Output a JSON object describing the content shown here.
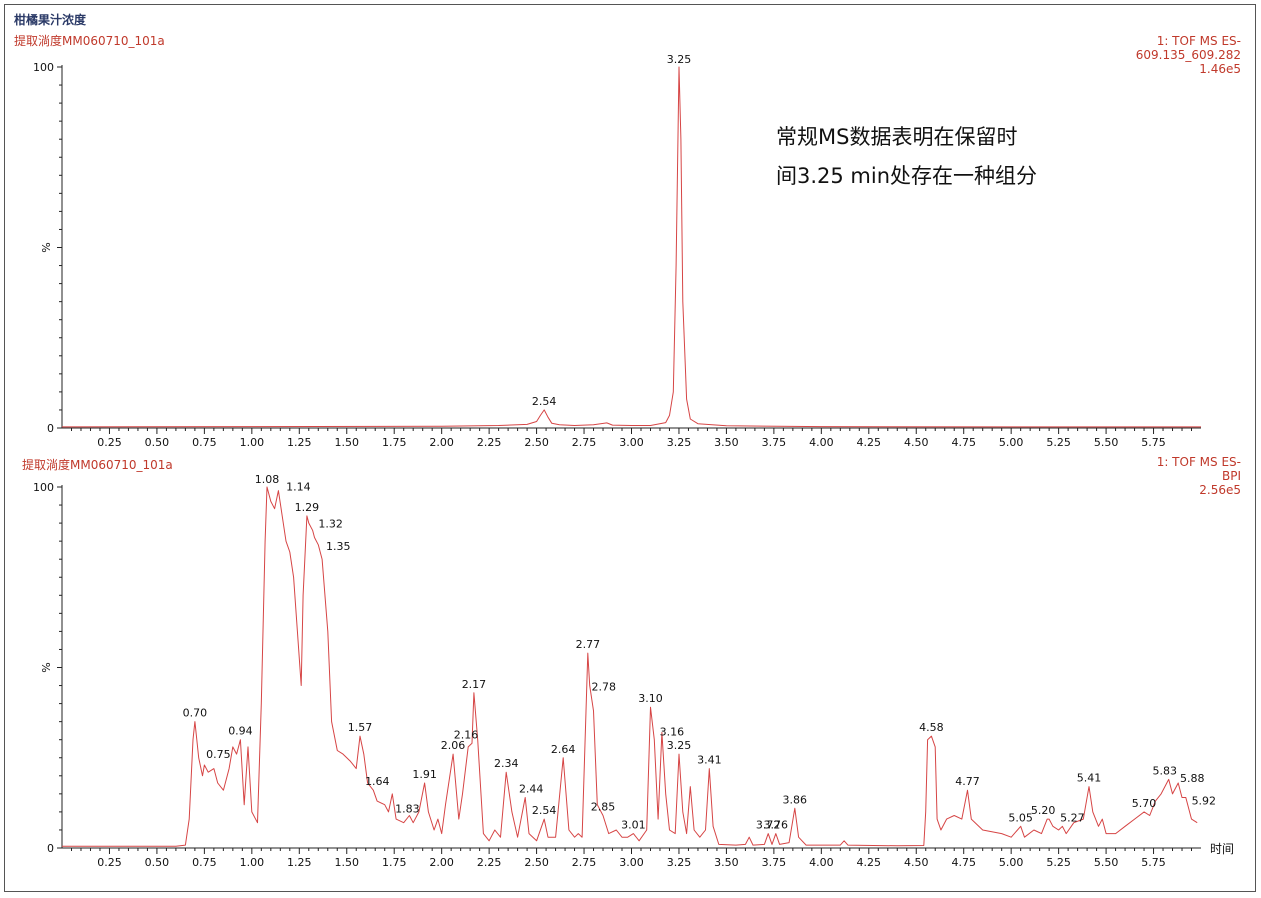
{
  "title": "柑橘果汁浓度",
  "note": [
    "常规MS数据表明在保留时",
    "间3.25 min处存在一种组分"
  ],
  "chart_data": [
    {
      "type": "line",
      "subtitle": "提取淌度MM060710_101a",
      "info": [
        "1: TOF MS ES-",
        "609.135_609.282",
        "1.46e5"
      ],
      "ylabel": "%",
      "xlabel": "",
      "xlim": [
        0,
        6
      ],
      "ylim": [
        0,
        100
      ],
      "y_ticks": [
        "0",
        "100"
      ],
      "x_ticks": [
        "0.25",
        "0.50",
        "0.75",
        "1.00",
        "1.25",
        "1.50",
        "1.75",
        "2.00",
        "2.25",
        "2.50",
        "2.75",
        "3.00",
        "3.25",
        "3.50",
        "3.75",
        "4.00",
        "4.25",
        "4.50",
        "4.75",
        "5.00",
        "5.25",
        "5.50",
        "5.75"
      ],
      "peaks": [
        {
          "x": 2.54,
          "y": 5,
          "label": "2.54"
        },
        {
          "x": 3.25,
          "y": 100,
          "label": "3.25"
        }
      ],
      "points": [
        [
          0,
          0.3
        ],
        [
          1.0,
          0.4
        ],
        [
          2.0,
          0.5
        ],
        [
          2.3,
          0.7
        ],
        [
          2.45,
          1.0
        ],
        [
          2.5,
          1.8
        ],
        [
          2.52,
          3.5
        ],
        [
          2.54,
          5.0
        ],
        [
          2.56,
          3.0
        ],
        [
          2.58,
          1.3
        ],
        [
          2.62,
          0.9
        ],
        [
          2.7,
          0.7
        ],
        [
          2.8,
          0.9
        ],
        [
          2.87,
          1.4
        ],
        [
          2.9,
          0.8
        ],
        [
          3.0,
          0.7
        ],
        [
          3.1,
          0.7
        ],
        [
          3.18,
          1.5
        ],
        [
          3.2,
          3.5
        ],
        [
          3.22,
          10
        ],
        [
          3.235,
          45
        ],
        [
          3.25,
          100
        ],
        [
          3.26,
          80
        ],
        [
          3.27,
          35
        ],
        [
          3.29,
          8
        ],
        [
          3.31,
          2.5
        ],
        [
          3.35,
          1.2
        ],
        [
          3.5,
          0.6
        ],
        [
          4.0,
          0.4
        ],
        [
          5.0,
          0.3
        ],
        [
          6.0,
          0.3
        ]
      ]
    },
    {
      "type": "line",
      "subtitle": "提取淌度MM060710_101a",
      "info": [
        "1: TOF MS ES-",
        "BPI",
        "2.56e5"
      ],
      "ylabel": "%",
      "xlabel": "时间",
      "xlim": [
        0,
        6
      ],
      "ylim": [
        0,
        100
      ],
      "y_ticks": [
        "0",
        "100"
      ],
      "x_ticks": [
        "0.25",
        "0.50",
        "0.75",
        "1.00",
        "1.25",
        "1.50",
        "1.75",
        "2.00",
        "2.25",
        "2.50",
        "2.75",
        "3.00",
        "3.25",
        "3.50",
        "3.75",
        "4.00",
        "4.25",
        "4.50",
        "4.75",
        "5.00",
        "5.25",
        "5.50",
        "5.75"
      ],
      "peaks": [
        {
          "x": 0.7,
          "y": 35,
          "label": "0.70"
        },
        {
          "x": 0.75,
          "y": 23,
          "label": "0.75"
        },
        {
          "x": 0.94,
          "y": 30,
          "label": "0.94"
        },
        {
          "x": 1.08,
          "y": 100,
          "label": "1.08"
        },
        {
          "x": 1.14,
          "y": 99,
          "label": "1.14"
        },
        {
          "x": 1.29,
          "y": 92,
          "label": "1.29"
        },
        {
          "x": 1.32,
          "y": 88,
          "label": "1.32"
        },
        {
          "x": 1.35,
          "y": 84,
          "label": "1.35"
        },
        {
          "x": 1.57,
          "y": 31,
          "label": "1.57"
        },
        {
          "x": 1.64,
          "y": 16,
          "label": "1.64"
        },
        {
          "x": 1.83,
          "y": 9,
          "label": "1.83"
        },
        {
          "x": 1.91,
          "y": 18,
          "label": "1.91"
        },
        {
          "x": 2.06,
          "y": 26,
          "label": "2.06"
        },
        {
          "x": 2.16,
          "y": 29,
          "label": "2.16"
        },
        {
          "x": 2.17,
          "y": 43,
          "label": "2.17"
        },
        {
          "x": 2.34,
          "y": 21,
          "label": "2.34"
        },
        {
          "x": 2.44,
          "y": 14,
          "label": "2.44"
        },
        {
          "x": 2.54,
          "y": 8,
          "label": "2.54"
        },
        {
          "x": 2.64,
          "y": 25,
          "label": "2.64"
        },
        {
          "x": 2.77,
          "y": 54,
          "label": "2.77"
        },
        {
          "x": 2.78,
          "y": 45,
          "label": "2.78"
        },
        {
          "x": 2.85,
          "y": 9,
          "label": "2.85"
        },
        {
          "x": 3.01,
          "y": 4,
          "label": "3.01"
        },
        {
          "x": 3.1,
          "y": 39,
          "label": "3.10"
        },
        {
          "x": 3.16,
          "y": 32,
          "label": "3.16"
        },
        {
          "x": 3.25,
          "y": 26,
          "label": "3.25"
        },
        {
          "x": 3.41,
          "y": 22,
          "label": "3.41"
        },
        {
          "x": 3.72,
          "y": 4,
          "label": "3.72"
        },
        {
          "x": 3.76,
          "y": 4,
          "label": "3.76"
        },
        {
          "x": 3.86,
          "y": 11,
          "label": "3.86"
        },
        {
          "x": 4.58,
          "y": 31,
          "label": "4.58"
        },
        {
          "x": 4.77,
          "y": 16,
          "label": "4.77"
        },
        {
          "x": 5.05,
          "y": 6,
          "label": "5.05"
        },
        {
          "x": 5.2,
          "y": 8,
          "label": "5.20"
        },
        {
          "x": 5.27,
          "y": 6,
          "label": "5.27"
        },
        {
          "x": 5.41,
          "y": 17,
          "label": "5.41"
        },
        {
          "x": 5.7,
          "y": 10,
          "label": "5.70"
        },
        {
          "x": 5.83,
          "y": 19,
          "label": "5.83"
        },
        {
          "x": 5.88,
          "y": 18,
          "label": "5.88"
        },
        {
          "x": 5.92,
          "y": 14,
          "label": "5.92"
        }
      ],
      "points": [
        [
          0,
          0.5
        ],
        [
          0.6,
          0.5
        ],
        [
          0.65,
          0.8
        ],
        [
          0.67,
          8
        ],
        [
          0.69,
          30
        ],
        [
          0.7,
          35
        ],
        [
          0.72,
          25
        ],
        [
          0.74,
          20
        ],
        [
          0.75,
          23
        ],
        [
          0.77,
          21
        ],
        [
          0.8,
          22
        ],
        [
          0.82,
          18
        ],
        [
          0.85,
          16
        ],
        [
          0.88,
          22
        ],
        [
          0.9,
          28
        ],
        [
          0.92,
          26
        ],
        [
          0.94,
          30
        ],
        [
          0.96,
          12
        ],
        [
          0.98,
          28
        ],
        [
          1.0,
          10
        ],
        [
          1.03,
          7
        ],
        [
          1.05,
          40
        ],
        [
          1.07,
          85
        ],
        [
          1.08,
          100
        ],
        [
          1.1,
          96
        ],
        [
          1.12,
          94
        ],
        [
          1.14,
          99
        ],
        [
          1.16,
          92
        ],
        [
          1.18,
          85
        ],
        [
          1.2,
          82
        ],
        [
          1.22,
          75
        ],
        [
          1.24,
          60
        ],
        [
          1.26,
          45
        ],
        [
          1.27,
          70
        ],
        [
          1.29,
          92
        ],
        [
          1.3,
          90
        ],
        [
          1.32,
          88
        ],
        [
          1.33,
          86
        ],
        [
          1.35,
          84
        ],
        [
          1.37,
          80
        ],
        [
          1.4,
          60
        ],
        [
          1.42,
          35
        ],
        [
          1.45,
          27
        ],
        [
          1.48,
          26
        ],
        [
          1.52,
          24
        ],
        [
          1.55,
          22
        ],
        [
          1.57,
          31
        ],
        [
          1.59,
          26
        ],
        [
          1.61,
          18
        ],
        [
          1.64,
          16
        ],
        [
          1.66,
          13
        ],
        [
          1.7,
          12
        ],
        [
          1.72,
          10
        ],
        [
          1.74,
          15
        ],
        [
          1.76,
          8
        ],
        [
          1.8,
          7
        ],
        [
          1.83,
          9
        ],
        [
          1.85,
          7
        ],
        [
          1.88,
          10
        ],
        [
          1.91,
          18
        ],
        [
          1.93,
          10
        ],
        [
          1.96,
          5
        ],
        [
          1.98,
          8
        ],
        [
          2.0,
          4
        ],
        [
          2.02,
          12
        ],
        [
          2.06,
          26
        ],
        [
          2.09,
          8
        ],
        [
          2.11,
          15
        ],
        [
          2.14,
          28
        ],
        [
          2.16,
          29
        ],
        [
          2.17,
          43
        ],
        [
          2.19,
          30
        ],
        [
          2.22,
          4
        ],
        [
          2.25,
          2
        ],
        [
          2.28,
          5
        ],
        [
          2.31,
          3
        ],
        [
          2.34,
          21
        ],
        [
          2.37,
          10
        ],
        [
          2.4,
          3
        ],
        [
          2.44,
          14
        ],
        [
          2.46,
          4
        ],
        [
          2.5,
          2
        ],
        [
          2.54,
          8
        ],
        [
          2.56,
          3
        ],
        [
          2.6,
          3
        ],
        [
          2.64,
          25
        ],
        [
          2.67,
          5
        ],
        [
          2.7,
          3
        ],
        [
          2.72,
          4
        ],
        [
          2.74,
          3
        ],
        [
          2.77,
          54
        ],
        [
          2.78,
          45
        ],
        [
          2.8,
          38
        ],
        [
          2.82,
          12
        ],
        [
          2.85,
          9
        ],
        [
          2.88,
          4
        ],
        [
          2.92,
          5
        ],
        [
          2.95,
          3
        ],
        [
          2.98,
          3
        ],
        [
          3.01,
          4
        ],
        [
          3.04,
          2
        ],
        [
          3.08,
          5
        ],
        [
          3.1,
          39
        ],
        [
          3.12,
          30
        ],
        [
          3.14,
          8
        ],
        [
          3.16,
          32
        ],
        [
          3.18,
          15
        ],
        [
          3.2,
          5
        ],
        [
          3.23,
          4
        ],
        [
          3.25,
          26
        ],
        [
          3.27,
          10
        ],
        [
          3.29,
          4
        ],
        [
          3.31,
          17
        ],
        [
          3.33,
          5
        ],
        [
          3.36,
          3
        ],
        [
          3.39,
          5
        ],
        [
          3.41,
          22
        ],
        [
          3.43,
          6
        ],
        [
          3.46,
          1
        ],
        [
          3.55,
          0.8
        ],
        [
          3.6,
          1
        ],
        [
          3.62,
          3
        ],
        [
          3.64,
          0.8
        ],
        [
          3.7,
          1
        ],
        [
          3.72,
          4
        ],
        [
          3.74,
          1
        ],
        [
          3.76,
          4
        ],
        [
          3.78,
          1
        ],
        [
          3.83,
          1.5
        ],
        [
          3.86,
          11
        ],
        [
          3.88,
          3
        ],
        [
          3.92,
          0.8
        ],
        [
          4.1,
          0.8
        ],
        [
          4.12,
          2
        ],
        [
          4.14,
          0.8
        ],
        [
          4.4,
          0.6
        ],
        [
          4.54,
          0.7
        ],
        [
          4.55,
          10
        ],
        [
          4.56,
          30
        ],
        [
          4.58,
          31
        ],
        [
          4.6,
          28
        ],
        [
          4.61,
          8
        ],
        [
          4.63,
          5
        ],
        [
          4.66,
          8
        ],
        [
          4.7,
          9
        ],
        [
          4.74,
          8
        ],
        [
          4.77,
          16
        ],
        [
          4.79,
          8
        ],
        [
          4.85,
          5
        ],
        [
          4.95,
          4
        ],
        [
          5.0,
          3
        ],
        [
          5.05,
          6
        ],
        [
          5.07,
          3
        ],
        [
          5.12,
          5
        ],
        [
          5.16,
          4
        ],
        [
          5.19,
          8
        ],
        [
          5.2,
          8
        ],
        [
          5.22,
          6
        ],
        [
          5.25,
          5
        ],
        [
          5.27,
          6
        ],
        [
          5.29,
          4
        ],
        [
          5.33,
          7
        ],
        [
          5.38,
          8
        ],
        [
          5.41,
          17
        ],
        [
          5.43,
          10
        ],
        [
          5.46,
          6
        ],
        [
          5.48,
          8
        ],
        [
          5.5,
          4
        ],
        [
          5.55,
          4
        ],
        [
          5.6,
          6
        ],
        [
          5.65,
          8
        ],
        [
          5.7,
          10
        ],
        [
          5.73,
          9
        ],
        [
          5.76,
          13
        ],
        [
          5.79,
          15
        ],
        [
          5.83,
          19
        ],
        [
          5.85,
          15
        ],
        [
          5.88,
          18
        ],
        [
          5.9,
          14
        ],
        [
          5.92,
          14
        ],
        [
          5.95,
          8
        ],
        [
          5.98,
          7
        ]
      ]
    }
  ]
}
